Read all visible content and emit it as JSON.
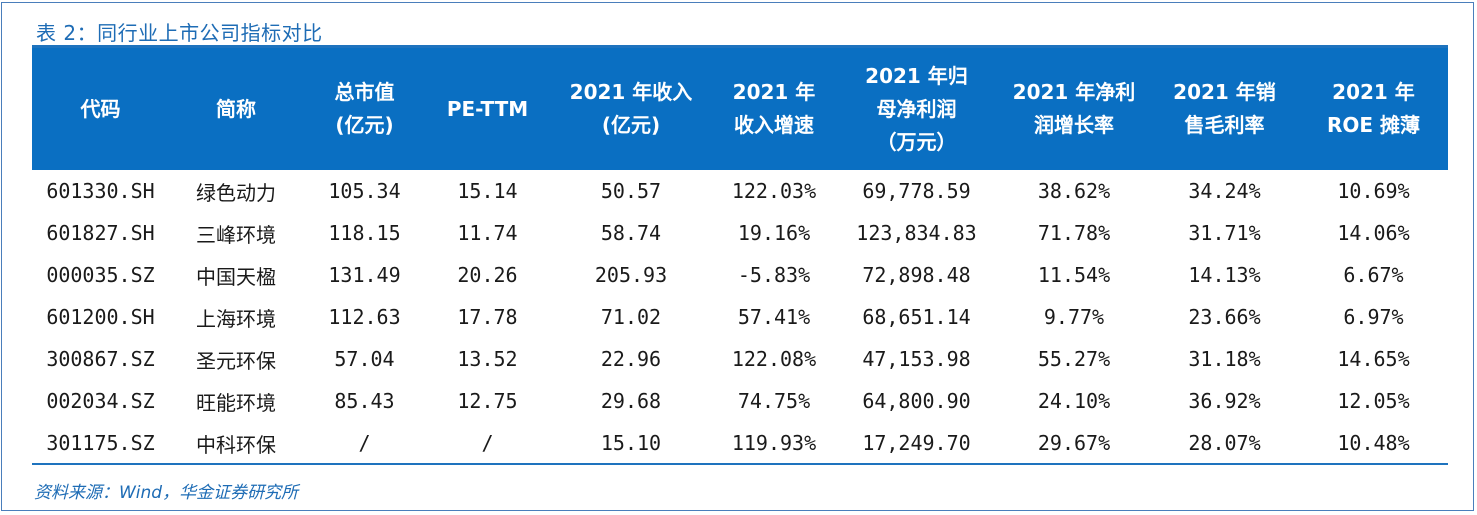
{
  "caption": "表 2：同行业上市公司指标对比",
  "table": {
    "headers": [
      "代码",
      "简称",
      "总市值\n(亿元)",
      "PE-TTM",
      "2021 年收入\n(亿元)",
      "2021 年\n收入增速",
      "2021 年归\n母净利润\n（万元）",
      "2021 年净利\n润增长率",
      "2021 年销\n售毛利率",
      "2021 年\nROE 摊薄"
    ],
    "rows": [
      [
        "601330.SH",
        "绿色动力",
        "105.34",
        "15.14",
        "50.57",
        "122.03%",
        "69,778.59",
        "38.62%",
        "34.24%",
        "10.69%"
      ],
      [
        "601827.SH",
        "三峰环境",
        "118.15",
        "11.74",
        "58.74",
        "19.16%",
        "123,834.83",
        "71.78%",
        "31.71%",
        "14.06%"
      ],
      [
        "000035.SZ",
        "中国天楹",
        "131.49",
        "20.26",
        "205.93",
        "-5.83%",
        "72,898.48",
        "11.54%",
        "14.13%",
        "6.67%"
      ],
      [
        "601200.SH",
        "上海环境",
        "112.63",
        "17.78",
        "71.02",
        "57.41%",
        "68,651.14",
        "9.77%",
        "23.66%",
        "6.97%"
      ],
      [
        "300867.SZ",
        "圣元环保",
        "57.04",
        "13.52",
        "22.96",
        "122.08%",
        "47,153.98",
        "55.27%",
        "31.18%",
        "14.65%"
      ],
      [
        "002034.SZ",
        "旺能环境",
        "85.43",
        "12.75",
        "29.68",
        "74.75%",
        "64,800.90",
        "24.10%",
        "36.92%",
        "12.05%"
      ],
      [
        "301175.SZ",
        "中科环保",
        "/",
        "/",
        "15.10",
        "119.93%",
        "17,249.70",
        "29.67%",
        "28.07%",
        "10.48%"
      ]
    ]
  },
  "source": "资料来源：Wind，华金证券研究所",
  "colors": {
    "header_bg": "#0a6fc2",
    "accent": "#1e6cb5",
    "frame": "#4a7ebb"
  }
}
